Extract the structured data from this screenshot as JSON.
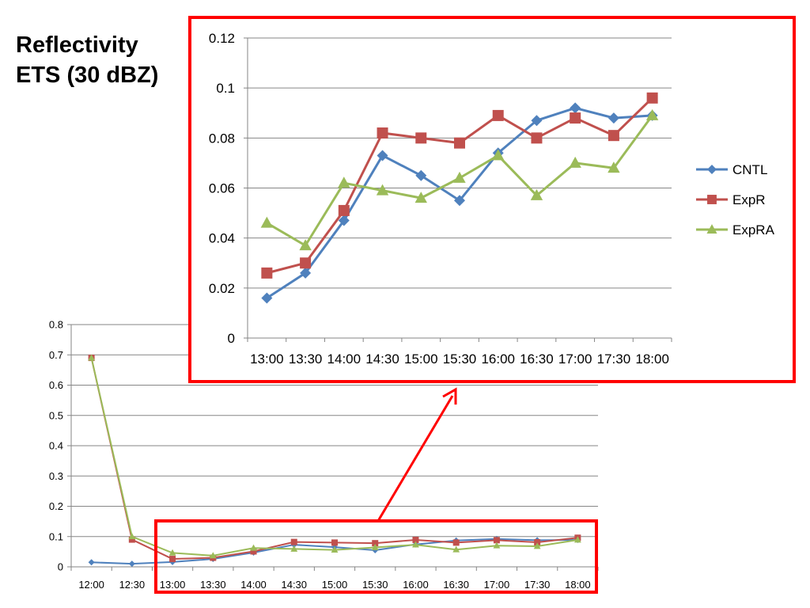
{
  "slide": {
    "title_line1": "Reflectivity",
    "title_line2": "ETS (30 dBZ)"
  },
  "colors": {
    "CNTL": "#4F81BD",
    "ExpR": "#C0504D",
    "ExpRA": "#9BBB59",
    "highlight": "#FF0000",
    "grid": "#868686"
  },
  "chart_data": [
    {
      "id": "full-chart",
      "type": "line",
      "x": [
        "12:00",
        "12:30",
        "13:00",
        "13:30",
        "14:00",
        "14:30",
        "15:00",
        "15:30",
        "16:00",
        "16:30",
        "17:00",
        "17:30",
        "18:00"
      ],
      "yticks": [
        "0",
        "0.1",
        "0.2",
        "0.3",
        "0.4",
        "0.5",
        "0.6",
        "0.7",
        "0.8"
      ],
      "ylim": [
        0,
        0.8
      ],
      "grid": true,
      "legend": "none",
      "series": [
        {
          "name": "CNTL",
          "marker": "diamond",
          "values": [
            0.015,
            0.01,
            0.016,
            0.026,
            0.047,
            0.073,
            0.065,
            0.055,
            0.074,
            0.087,
            0.092,
            0.088,
            0.089
          ]
        },
        {
          "name": "ExpR",
          "marker": "square",
          "values": [
            0.69,
            0.09,
            0.026,
            0.03,
            0.051,
            0.082,
            0.08,
            0.078,
            0.089,
            0.08,
            0.088,
            0.081,
            0.096
          ]
        },
        {
          "name": "ExpRA",
          "marker": "triangle",
          "values": [
            0.69,
            0.1,
            0.046,
            0.037,
            0.062,
            0.059,
            0.056,
            0.064,
            0.073,
            0.057,
            0.07,
            0.068,
            0.089
          ]
        }
      ]
    },
    {
      "id": "zoom-chart",
      "type": "line",
      "x": [
        "13:00",
        "13:30",
        "14:00",
        "14:30",
        "15:00",
        "15:30",
        "16:00",
        "16:30",
        "17:00",
        "17:30",
        "18:00"
      ],
      "yticks": [
        "0",
        "0.02",
        "0.04",
        "0.06",
        "0.08",
        "0.1",
        "0.12"
      ],
      "ylim": [
        0,
        0.12
      ],
      "grid": true,
      "legend": "right",
      "series": [
        {
          "name": "CNTL",
          "marker": "diamond",
          "values": [
            0.016,
            0.026,
            0.047,
            0.073,
            0.065,
            0.055,
            0.074,
            0.087,
            0.092,
            0.088,
            0.089
          ]
        },
        {
          "name": "ExpR",
          "marker": "square",
          "values": [
            0.026,
            0.03,
            0.051,
            0.082,
            0.08,
            0.078,
            0.089,
            0.08,
            0.088,
            0.081,
            0.096
          ]
        },
        {
          "name": "ExpRA",
          "marker": "triangle",
          "values": [
            0.046,
            0.037,
            0.062,
            0.059,
            0.056,
            0.064,
            0.073,
            0.057,
            0.07,
            0.068,
            0.089
          ]
        }
      ]
    }
  ]
}
